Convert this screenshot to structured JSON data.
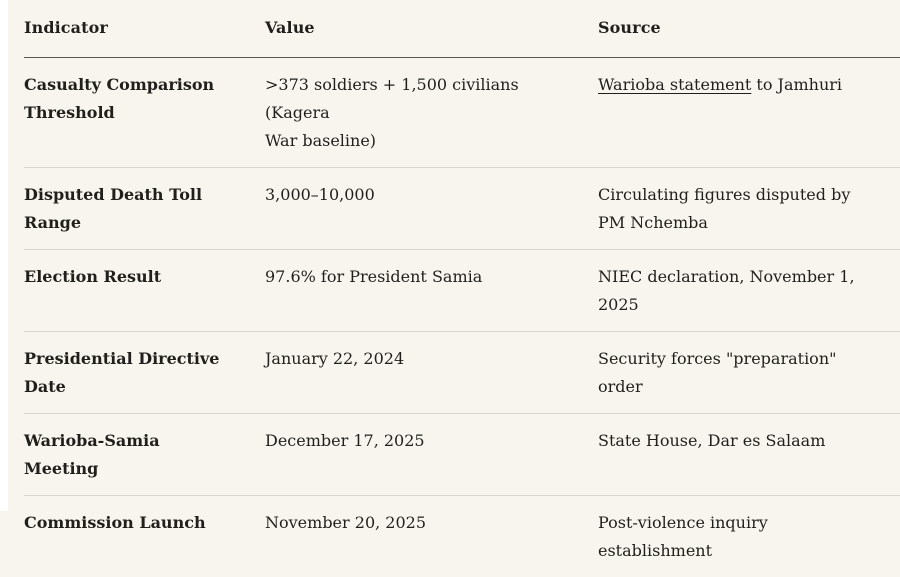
{
  "colors": {
    "background": "#f7f5ee",
    "page_edge": "#ffffff",
    "text": "#201f1b",
    "header_rule": "#57554e",
    "row_rule": "#d9d6cd"
  },
  "table": {
    "columns": [
      "Indicator",
      "Value",
      "Source"
    ],
    "rows": [
      {
        "indicator": "Casualty Comparison\nThreshold",
        "value": ">373 soldiers + 1,500 civilians (Kagera\nWar baseline)",
        "source_link": "Warioba statement",
        "source_rest": " to Jamhuri"
      },
      {
        "indicator": "Disputed Death Toll\nRange",
        "value": "3,000–10,000",
        "source": "Circulating figures disputed by\nPM Nchemba"
      },
      {
        "indicator": "Election Result",
        "value": "97.6% for President Samia",
        "source": "NIEC declaration, November 1,\n2025"
      },
      {
        "indicator": "Presidential Directive\nDate",
        "value": "January 22, 2024",
        "source": "Security forces \"preparation\"\norder"
      },
      {
        "indicator": "Warioba-Samia Meeting",
        "value": "December 17, 2025",
        "source": "State House, Dar es Salaam"
      },
      {
        "indicator": "Commission Launch",
        "value": "November 20, 2025",
        "source": "Post-violence inquiry\nestablishment"
      }
    ]
  },
  "chart_data": {
    "type": "table",
    "columns": [
      "Indicator",
      "Value",
      "Source"
    ],
    "rows": [
      [
        "Casualty Comparison Threshold",
        ">373 soldiers + 1,500 civilians (Kagera War baseline)",
        "Warioba statement to Jamhuri"
      ],
      [
        "Disputed Death Toll Range",
        "3,000–10,000",
        "Circulating figures disputed by PM Nchemba"
      ],
      [
        "Election Result",
        "97.6% for President Samia",
        "NIEC declaration, November 1, 2025"
      ],
      [
        "Presidential Directive Date",
        "January 22, 2024",
        "Security forces \"preparation\" order"
      ],
      [
        "Warioba-Samia Meeting",
        "December 17, 2025",
        "State House, Dar es Salaam"
      ],
      [
        "Commission Launch",
        "November 20, 2025",
        "Post-violence inquiry establishment"
      ]
    ]
  }
}
